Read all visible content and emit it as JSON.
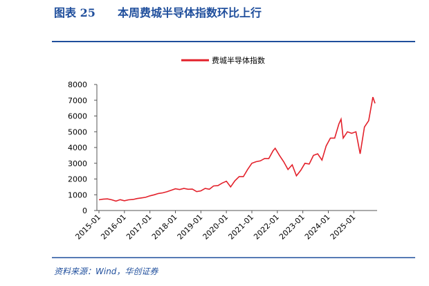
{
  "chart_data": {
    "type": "line",
    "title_label": "图表 25",
    "title": "本周费城半导体指数环比上行",
    "source": "资料来源：Wind，华创证券",
    "x": [
      "2015-01",
      "2015-03",
      "2015-05",
      "2015-07",
      "2015-09",
      "2015-11",
      "2016-01",
      "2016-03",
      "2016-05",
      "2016-07",
      "2016-09",
      "2016-11",
      "2017-01",
      "2017-03",
      "2017-05",
      "2017-07",
      "2017-09",
      "2017-11",
      "2018-01",
      "2018-03",
      "2018-05",
      "2018-07",
      "2018-09",
      "2018-11",
      "2019-01",
      "2019-03",
      "2019-05",
      "2019-07",
      "2019-09",
      "2019-11",
      "2020-01",
      "2020-03",
      "2020-05",
      "2020-07",
      "2020-09",
      "2020-11",
      "2021-01",
      "2021-03",
      "2021-05",
      "2021-07",
      "2021-09",
      "2021-11",
      "2021-12",
      "2022-02",
      "2022-04",
      "2022-06",
      "2022-08",
      "2022-10",
      "2022-12",
      "2023-02",
      "2023-04",
      "2023-06",
      "2023-08",
      "2023-10",
      "2023-12",
      "2024-02",
      "2024-04",
      "2024-06",
      "2024-07",
      "2024-08",
      "2024-10",
      "2024-12",
      "2025-02",
      "2025-04",
      "2025-06",
      "2025-08",
      "2025-10",
      "2025-11"
    ],
    "series": [
      {
        "name": "费城半导体指数",
        "color": "#e3202a",
        "values": [
          680,
          720,
          740,
          680,
          600,
          690,
          620,
          680,
          700,
          760,
          800,
          840,
          930,
          1000,
          1080,
          1120,
          1190,
          1290,
          1380,
          1330,
          1400,
          1350,
          1360,
          1200,
          1250,
          1400,
          1350,
          1560,
          1580,
          1740,
          1860,
          1500,
          1880,
          2150,
          2150,
          2600,
          3000,
          3100,
          3150,
          3300,
          3300,
          3800,
          3950,
          3500,
          3100,
          2600,
          2900,
          2200,
          2550,
          3000,
          2950,
          3500,
          3600,
          3200,
          4100,
          4600,
          4600,
          5500,
          5800,
          4600,
          5000,
          4900,
          5000,
          3600,
          5300,
          5700,
          7200,
          6800
        ]
      }
    ],
    "xlim": [
      "2015-01",
      "2025-11"
    ],
    "xticks": [
      "2015-01",
      "2016-01",
      "2017-01",
      "2018-01",
      "2019-01",
      "2020-01",
      "2021-01",
      "2022-01",
      "2023-01",
      "2024-01",
      "2025-01"
    ],
    "ylim": [
      0,
      8000
    ],
    "yticks": [
      0,
      1000,
      2000,
      3000,
      4000,
      5000,
      6000,
      7000,
      8000
    ]
  }
}
